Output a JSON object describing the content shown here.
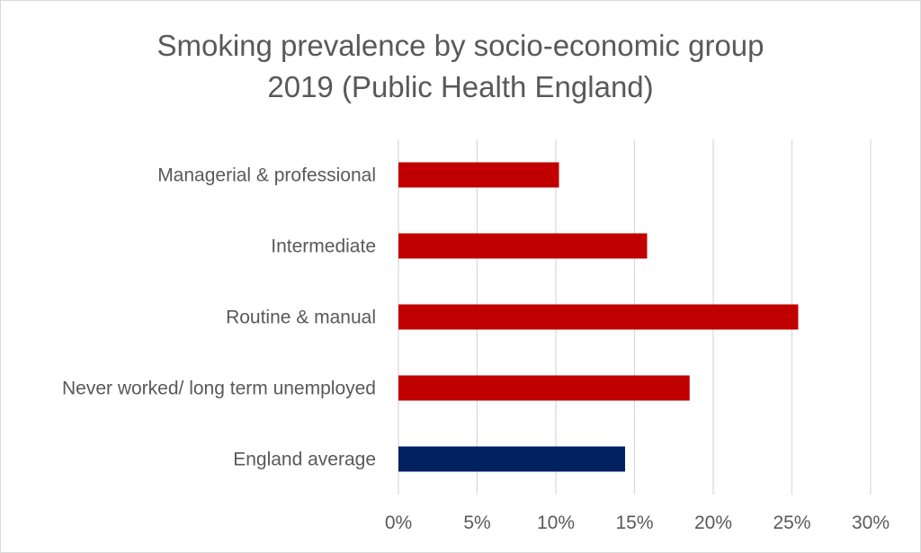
{
  "chart_data": {
    "type": "bar",
    "orientation": "horizontal",
    "title_lines": [
      "Smoking prevalence by socio-economic group",
      "2019 (Public Health England)"
    ],
    "categories": [
      "Managerial & professional",
      "Intermediate",
      "Routine & manual",
      "Never worked/ long term unemployed",
      "England average"
    ],
    "values": [
      10.2,
      15.8,
      25.4,
      18.5,
      14.4
    ],
    "bar_colors": [
      "#c00000",
      "#c00000",
      "#c00000",
      "#c00000",
      "#002060"
    ],
    "xlim": [
      0,
      30
    ],
    "xticks": [
      0,
      5,
      10,
      15,
      20,
      25,
      30
    ],
    "xtick_labels": [
      "0%",
      "5%",
      "10%",
      "15%",
      "20%",
      "25%",
      "30%"
    ],
    "gridlines": true,
    "legend": "none"
  }
}
